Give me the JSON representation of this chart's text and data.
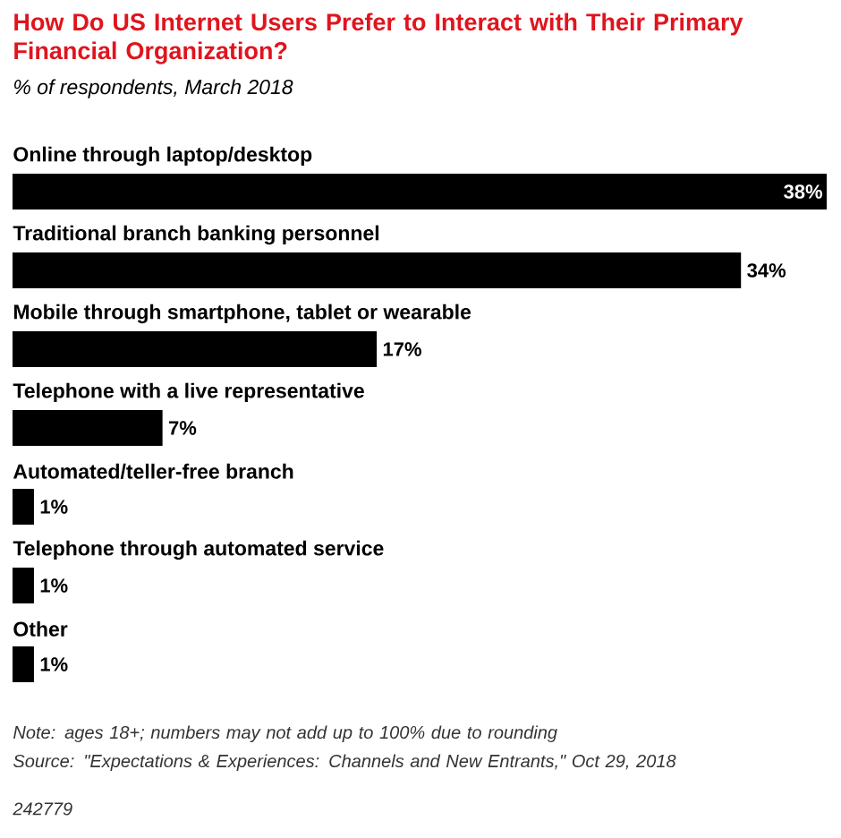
{
  "chart_data": {
    "type": "bar",
    "orientation": "horizontal",
    "title": "How Do US Internet Users Prefer to Interact with Their Primary Financial Organization?",
    "subtitle": "% of respondents, March 2018",
    "categories": [
      "Online through laptop/desktop",
      "Traditional branch banking personnel",
      "Mobile through smartphone, tablet or wearable",
      "Telephone with a live representative",
      "Automated/teller-free branch",
      "Telephone through automated service",
      "Other"
    ],
    "values": [
      38,
      34,
      17,
      7,
      1,
      1,
      1
    ],
    "value_labels": [
      "38%",
      "34%",
      "17%",
      "7%",
      "1%",
      "1%",
      "1%"
    ],
    "color": "#000000",
    "xlim": [
      0,
      38
    ],
    "annotations": [
      "Note: ages 18+; numbers may not add up to 100% due to rounding",
      "Source: \"Expectations & Experiences: Channels and New Entrants,\" Oct 29, 2018",
      "242779"
    ]
  }
}
